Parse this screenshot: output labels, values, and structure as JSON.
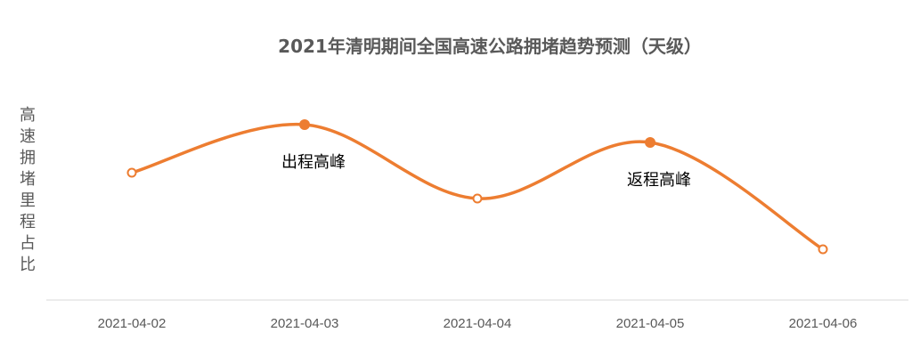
{
  "chart_data": {
    "type": "line",
    "title": "2021年清明期间全国高速公路拥堵趋势预测（天级）",
    "ylabel": "高速拥堵里程占比",
    "xlabel": "",
    "categories": [
      "2021-04-02",
      "2021-04-03",
      "2021-04-04",
      "2021-04-05",
      "2021-04-06"
    ],
    "values": [
      143,
      197,
      114,
      177,
      57
    ],
    "ylim": [
      0,
      200
    ],
    "smooth": true,
    "grid": false,
    "annotations": [
      {
        "category": "2021-04-03",
        "text": "出程高峰"
      },
      {
        "category": "2021-04-05",
        "text": "返程高峰"
      }
    ],
    "highlighted": [
      "2021-04-03",
      "2021-04-05"
    ],
    "colors": {
      "line": "#ED7D31",
      "axis": "#D9D9D9",
      "text": "#595959"
    }
  }
}
